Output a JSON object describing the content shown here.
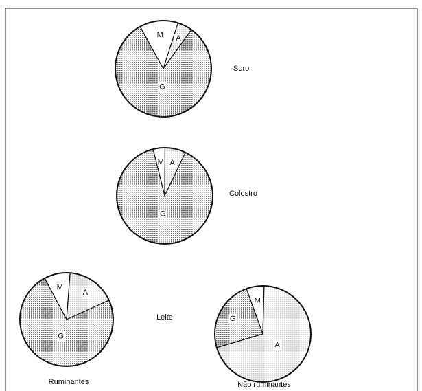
{
  "group_label": "Leite",
  "chart_data": [
    {
      "type": "pie",
      "title": "Soro",
      "categories": [
        "M",
        "A",
        "G"
      ],
      "values": [
        13,
        5,
        82
      ],
      "colors": [
        "#ffffff",
        "#c8c8c8",
        "#6a6a6a"
      ],
      "startangle": -29
    },
    {
      "type": "pie",
      "title": "Colostro",
      "categories": [
        "M",
        "A",
        "G"
      ],
      "values": [
        4,
        7,
        89
      ],
      "colors": [
        "#ffffff",
        "#c8c8c8",
        "#6a6a6a"
      ],
      "startangle": -14
    },
    {
      "type": "pie",
      "title": "Ruminantes",
      "categories": [
        "M",
        "A",
        "G"
      ],
      "values": [
        9,
        17,
        74
      ],
      "colors": [
        "#ffffff",
        "#c8c8c8",
        "#6a6a6a"
      ],
      "startangle": -28
    },
    {
      "type": "pie",
      "title": "Não ruminantes",
      "categories": [
        "M",
        "A",
        "G"
      ],
      "values": [
        6,
        70,
        24
      ],
      "colors": [
        "#ffffff",
        "#c8c8c8",
        "#6a6a6a"
      ],
      "startangle": -20
    }
  ]
}
